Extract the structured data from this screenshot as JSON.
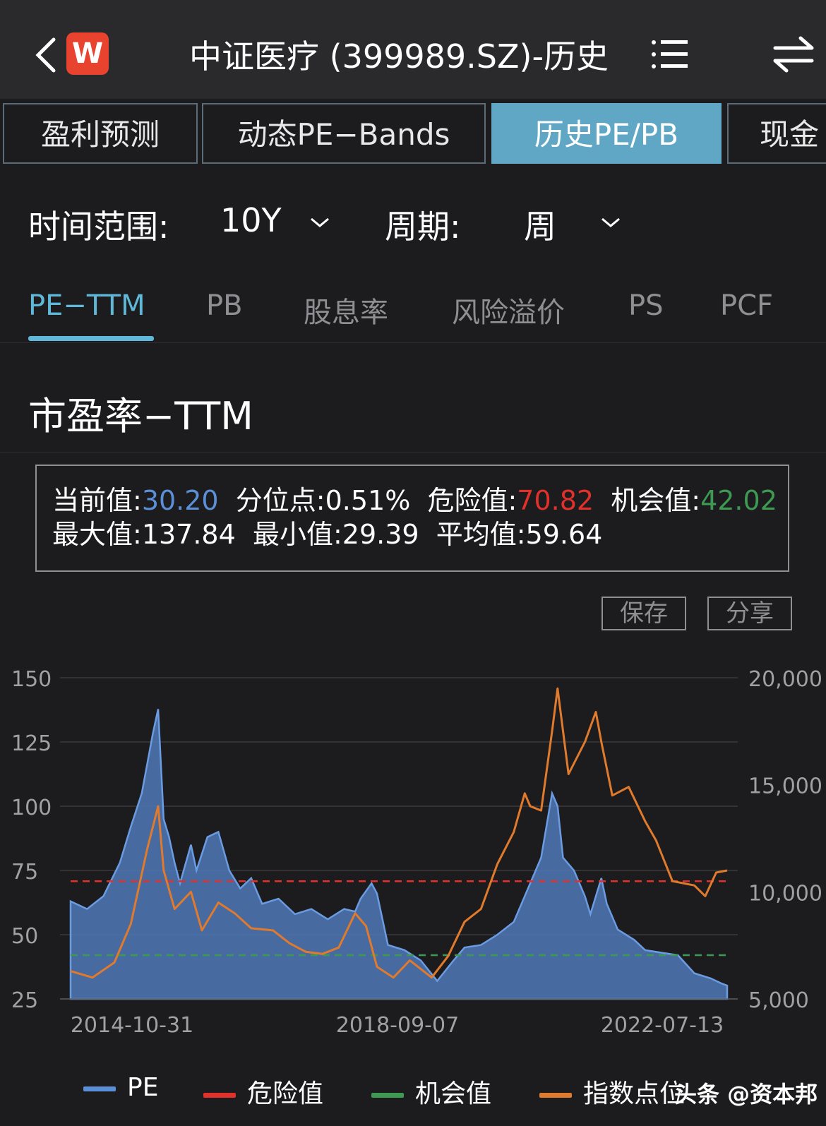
{
  "header": {
    "title": "中证医疗 (399989.SZ)-历史",
    "logo_text": "W"
  },
  "tabs": [
    {
      "label": "盈利预测",
      "active": false
    },
    {
      "label": "动态PE−Bands",
      "active": false
    },
    {
      "label": "历史PE/PB",
      "active": true
    },
    {
      "label": "现金",
      "active": false
    }
  ],
  "filters": {
    "range_label": "时间范围:",
    "range_value": "10Y",
    "period_label": "周期:",
    "period_value": "周"
  },
  "metric_tabs": [
    {
      "label": "PE−TTM",
      "active": true
    },
    {
      "label": "PB",
      "active": false
    },
    {
      "label": "股息率",
      "active": false
    },
    {
      "label": "风险溢价",
      "active": false
    },
    {
      "label": "PS",
      "active": false
    },
    {
      "label": "PCF",
      "active": false
    }
  ],
  "section_title": "市盈率−TTM",
  "stats": {
    "current_label": "当前值:",
    "current_value": "30.20",
    "percentile_label": "分位点:",
    "percentile_value": "0.51%",
    "danger_label": "危险值:",
    "danger_value": "70.82",
    "opportunity_label": "机会值:",
    "opportunity_value": "42.02",
    "max_label": "最大值:",
    "max_value": "137.84",
    "min_label": "最小值:",
    "min_value": "29.39",
    "avg_label": "平均值:",
    "avg_value": "59.64"
  },
  "actions": {
    "save": "保存",
    "share": "分享"
  },
  "watermark": "头条 @资本邦",
  "colors": {
    "pe": "#5b8fd6",
    "danger": "#e2302b",
    "opportunity": "#3e9a52",
    "index": "#e07a2c",
    "accent": "#5fb8d8"
  },
  "chart_data": {
    "type": "area",
    "x_tick_labels": [
      "2014-10-31",
      "2018-09-07",
      "2022-07-13"
    ],
    "x_range": [
      "2014-02",
      "2024-02"
    ],
    "left_axis": {
      "ticks": [
        "150",
        "125",
        "100",
        "75",
        "50",
        "25"
      ],
      "range": [
        25,
        150
      ]
    },
    "right_axis": {
      "ticks": [
        "20,000",
        "15,000",
        "10,000",
        "5,000"
      ],
      "range": [
        5000,
        20000
      ]
    },
    "grid": true,
    "legend_position": "bottom",
    "series": [
      {
        "name": "PE",
        "kind": "area",
        "axis": "left",
        "points": [
          [
            "2014-02-01",
            63
          ],
          [
            "2014-05-01",
            60
          ],
          [
            "2014-08-01",
            65
          ],
          [
            "2014-11-01",
            78
          ],
          [
            "2015-01-01",
            92
          ],
          [
            "2015-03-01",
            105
          ],
          [
            "2015-05-01",
            128
          ],
          [
            "2015-06-01",
            137.8
          ],
          [
            "2015-07-01",
            95
          ],
          [
            "2015-08-01",
            88
          ],
          [
            "2015-09-01",
            78
          ],
          [
            "2015-10-01",
            70
          ],
          [
            "2015-12-01",
            85
          ],
          [
            "2016-01-01",
            75
          ],
          [
            "2016-03-01",
            88
          ],
          [
            "2016-05-01",
            90
          ],
          [
            "2016-07-01",
            75
          ],
          [
            "2016-09-01",
            68
          ],
          [
            "2016-11-01",
            72
          ],
          [
            "2017-01-01",
            62
          ],
          [
            "2017-04-01",
            64
          ],
          [
            "2017-07-01",
            58
          ],
          [
            "2017-10-01",
            60
          ],
          [
            "2018-01-01",
            56
          ],
          [
            "2018-04-01",
            60
          ],
          [
            "2018-06-01",
            59
          ],
          [
            "2018-07-01",
            64
          ],
          [
            "2018-09-01",
            70
          ],
          [
            "2018-10-01",
            66
          ],
          [
            "2018-12-01",
            46
          ],
          [
            "2019-03-01",
            44
          ],
          [
            "2019-06-01",
            40
          ],
          [
            "2019-09-01",
            32
          ],
          [
            "2019-12-01",
            40
          ],
          [
            "2020-02-01",
            45
          ],
          [
            "2020-05-01",
            46
          ],
          [
            "2020-08-01",
            50
          ],
          [
            "2020-11-01",
            55
          ],
          [
            "2021-01-01",
            65
          ],
          [
            "2021-04-01",
            80
          ],
          [
            "2021-06-01",
            105
          ],
          [
            "2021-07-01",
            100
          ],
          [
            "2021-08-01",
            80
          ],
          [
            "2021-10-01",
            75
          ],
          [
            "2021-12-01",
            65
          ],
          [
            "2022-01-01",
            58
          ],
          [
            "2022-03-01",
            72
          ],
          [
            "2022-04-01",
            62
          ],
          [
            "2022-06-01",
            52
          ],
          [
            "2022-09-01",
            48
          ],
          [
            "2022-11-01",
            44
          ],
          [
            "2023-02-01",
            43
          ],
          [
            "2023-05-01",
            42
          ],
          [
            "2023-08-01",
            35
          ],
          [
            "2023-11-01",
            33
          ],
          [
            "2024-01-01",
            31
          ],
          [
            "2024-02-01",
            30.2
          ]
        ]
      },
      {
        "name": "危险值",
        "kind": "dashed",
        "axis": "left",
        "points": [
          [
            "2014-02-01",
            70.82
          ],
          [
            "2024-02-01",
            70.82
          ]
        ]
      },
      {
        "name": "机会值",
        "kind": "dashed",
        "axis": "left",
        "points": [
          [
            "2014-02-01",
            42.02
          ],
          [
            "2024-02-01",
            42.02
          ]
        ]
      },
      {
        "name": "指数点位",
        "kind": "line",
        "axis": "right",
        "points": [
          [
            "2014-02-01",
            6300
          ],
          [
            "2014-06-01",
            6000
          ],
          [
            "2014-10-01",
            6700
          ],
          [
            "2015-01-01",
            8500
          ],
          [
            "2015-04-01",
            12000
          ],
          [
            "2015-06-01",
            14000
          ],
          [
            "2015-07-01",
            11000
          ],
          [
            "2015-09-01",
            9200
          ],
          [
            "2015-12-01",
            10000
          ],
          [
            "2016-02-01",
            8200
          ],
          [
            "2016-05-01",
            9500
          ],
          [
            "2016-08-01",
            9000
          ],
          [
            "2016-11-01",
            8300
          ],
          [
            "2017-03-01",
            8200
          ],
          [
            "2017-06-01",
            7600
          ],
          [
            "2017-09-01",
            7200
          ],
          [
            "2017-12-01",
            7100
          ],
          [
            "2018-03-01",
            7400
          ],
          [
            "2018-06-01",
            9000
          ],
          [
            "2018-08-01",
            8400
          ],
          [
            "2018-10-01",
            6500
          ],
          [
            "2019-01-01",
            6000
          ],
          [
            "2019-04-01",
            6800
          ],
          [
            "2019-08-01",
            6000
          ],
          [
            "2019-11-01",
            7000
          ],
          [
            "2020-02-01",
            8600
          ],
          [
            "2020-05-01",
            9200
          ],
          [
            "2020-08-01",
            11300
          ],
          [
            "2020-11-01",
            12800
          ],
          [
            "2021-01-01",
            14600
          ],
          [
            "2021-02-01",
            14000
          ],
          [
            "2021-04-01",
            13800
          ],
          [
            "2021-06-01",
            17500
          ],
          [
            "2021-07-01",
            19500
          ],
          [
            "2021-09-01",
            15500
          ],
          [
            "2021-12-01",
            17000
          ],
          [
            "2022-02-01",
            18400
          ],
          [
            "2022-03-01",
            17000
          ],
          [
            "2022-05-01",
            14500
          ],
          [
            "2022-08-01",
            14900
          ],
          [
            "2022-11-01",
            13300
          ],
          [
            "2023-01-01",
            12400
          ],
          [
            "2023-04-01",
            10500
          ],
          [
            "2023-08-01",
            10300
          ],
          [
            "2023-10-01",
            9800
          ],
          [
            "2023-12-01",
            10900
          ],
          [
            "2024-02-01",
            11000
          ]
        ]
      }
    ]
  }
}
